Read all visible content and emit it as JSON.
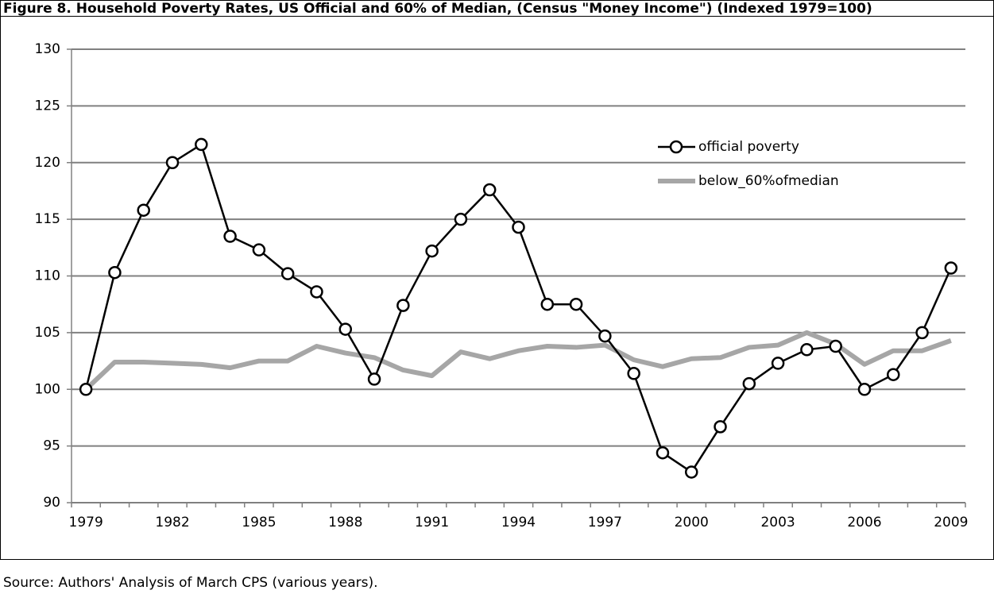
{
  "chart_data": {
    "type": "line",
    "title": "Figure 8. Household Poverty Rates, US Official and 60% of Median, (Census \"Money Income\") (Indexed 1979=100)",
    "source": "Source: Authors' Analysis of March CPS (various years).",
    "categories": [
      "1979",
      null,
      null,
      "1982",
      null,
      null,
      "1985",
      null,
      null,
      "1988",
      null,
      null,
      "1991",
      null,
      null,
      "1994",
      null,
      null,
      "1997",
      null,
      null,
      "2000",
      null,
      null,
      "2003",
      null,
      null,
      "2006",
      null,
      null,
      "2009"
    ],
    "series": [
      {
        "name": "official poverty",
        "color": "#000000",
        "marker": "circle",
        "values": [
          100,
          110.3,
          115.8,
          120.0,
          121.6,
          113.5,
          112.3,
          110.2,
          108.6,
          105.3,
          100.9,
          107.4,
          112.2,
          115.0,
          117.6,
          114.3,
          107.5,
          107.5,
          104.7,
          101.4,
          94.4,
          92.7,
          96.7,
          100.5,
          102.3,
          103.5,
          103.8,
          100.0,
          101.3,
          105.0,
          110.7
        ]
      },
      {
        "name": "below_60%ofmedian",
        "color": "#a6a6a6",
        "marker": "none",
        "values": [
          100,
          102.4,
          102.4,
          102.3,
          102.2,
          101.9,
          102.5,
          102.5,
          103.8,
          103.2,
          102.8,
          101.7,
          101.2,
          103.3,
          102.7,
          103.4,
          103.8,
          103.7,
          103.9,
          102.6,
          102.0,
          102.7,
          102.8,
          103.7,
          103.9,
          105.0,
          104.0,
          102.2,
          103.4,
          103.4,
          104.3
        ]
      }
    ],
    "ylim": [
      90,
      130
    ],
    "yticks": [
      90,
      95,
      100,
      105,
      110,
      115,
      120,
      125,
      130
    ],
    "grid": true
  }
}
